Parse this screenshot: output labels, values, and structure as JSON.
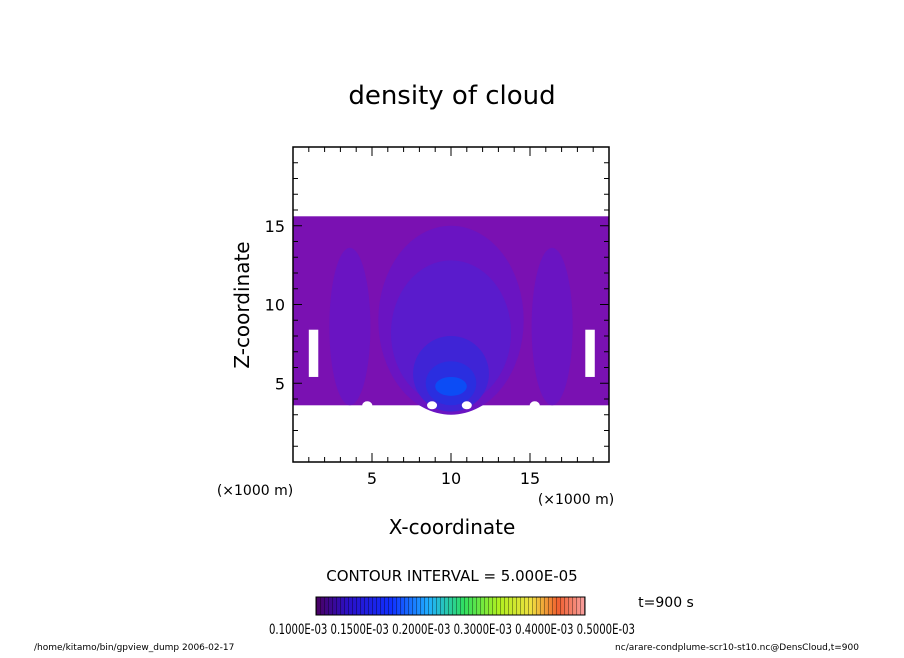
{
  "chart_data": {
    "type": "heatmap",
    "title": "density of cloud",
    "xlabel": "X-coordinate",
    "ylabel": "Z-coordinate",
    "x_unit": "(×1000 m)",
    "y_unit": "(×1000 m)",
    "xlim": [
      0,
      20
    ],
    "ylim": [
      0,
      20
    ],
    "x_ticks": [
      5,
      10,
      15
    ],
    "y_ticks": [
      5,
      10,
      15
    ],
    "x_tick_labels": [
      "5",
      "10",
      "15"
    ],
    "y_tick_labels": [
      "5",
      "10",
      "15"
    ],
    "cloud_extent": {
      "x": [
        0,
        20
      ],
      "z": [
        3.6,
        15.6
      ]
    },
    "contour_interval_text": "CONTOUR INTERVAL = 5.000E-05",
    "time_text": "t=900 s",
    "colorbar": {
      "min": 0.0001,
      "max": 0.0005,
      "tick_text": "0.1000E-03 0.1500E-03 0.2000E-03 0.3000E-03 0.4000E-03 0.5000E-03"
    },
    "footer_left": "/home/kitamo/bin/gpview_dump  2006-02-17",
    "footer_right": "nc/arare-condplume-scr10-st10.nc@DensCloud,t=900",
    "colors": {
      "background_cloud": "#7a11b2",
      "level_2": "#6a14c2",
      "level_3": "#5a1bcc",
      "level_4": "#3f24d6",
      "level_5": "#2a2ee0",
      "core": "#0c4cf5"
    }
  }
}
